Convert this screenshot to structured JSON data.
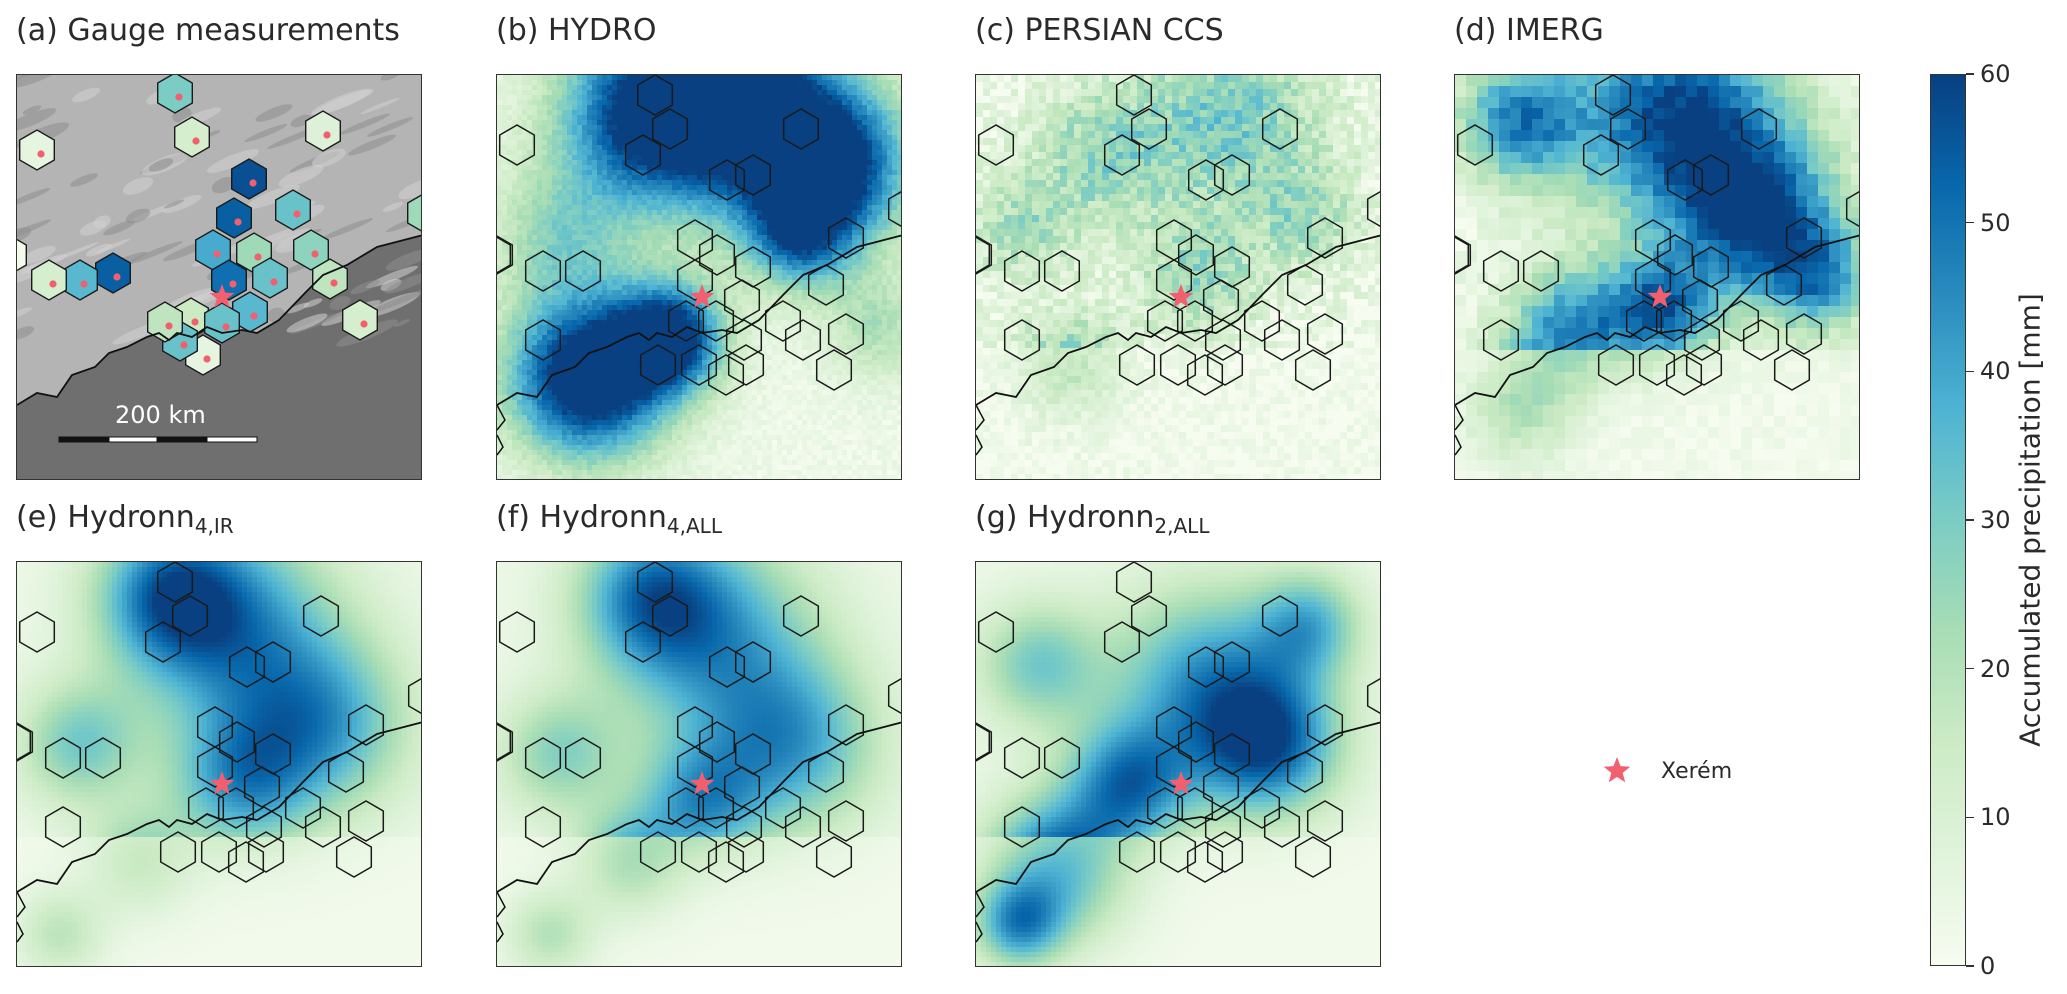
{
  "panels": [
    {
      "title": "(a) Gauge measurements",
      "sub": "",
      "kind": "gauge"
    },
    {
      "title": "(b) HYDRO",
      "sub": "",
      "kind": "hydro"
    },
    {
      "title": "(c) PERSIAN CCS",
      "sub": "",
      "kind": "persian"
    },
    {
      "title": "(d) IMERG",
      "sub": "",
      "kind": "imerg"
    },
    {
      "title": "(e) Hydronn",
      "sub": "4,IR",
      "kind": "h4ir"
    },
    {
      "title": "(f) Hydronn",
      "sub": "4,ALL",
      "kind": "h4all"
    },
    {
      "title": "(g) Hydronn",
      "sub": "2,ALL",
      "kind": "h2all"
    }
  ],
  "scale_bar_label": "200 km",
  "legend": {
    "marker": "star",
    "label": "Xerém",
    "marker_color": "#f25f6e"
  },
  "colorbar": {
    "label": "Accumulated precipitation [mm]",
    "min": 0,
    "max": 60,
    "ticks": [
      "0",
      "10",
      "20",
      "30",
      "40",
      "50",
      "60"
    ],
    "colormap": [
      "#f7fcf0",
      "#e0f3db",
      "#ccebc5",
      "#a8ddb5",
      "#7bccc4",
      "#4eb3d3",
      "#2b8cbe",
      "#0868ac",
      "#084081"
    ]
  },
  "map_overlay": {
    "hexagon_outline_color": "#1a1a1a",
    "coastline_color": "#111111",
    "gauge_dot_color": "#f25f6e",
    "star_color": "#f25f6e"
  }
}
